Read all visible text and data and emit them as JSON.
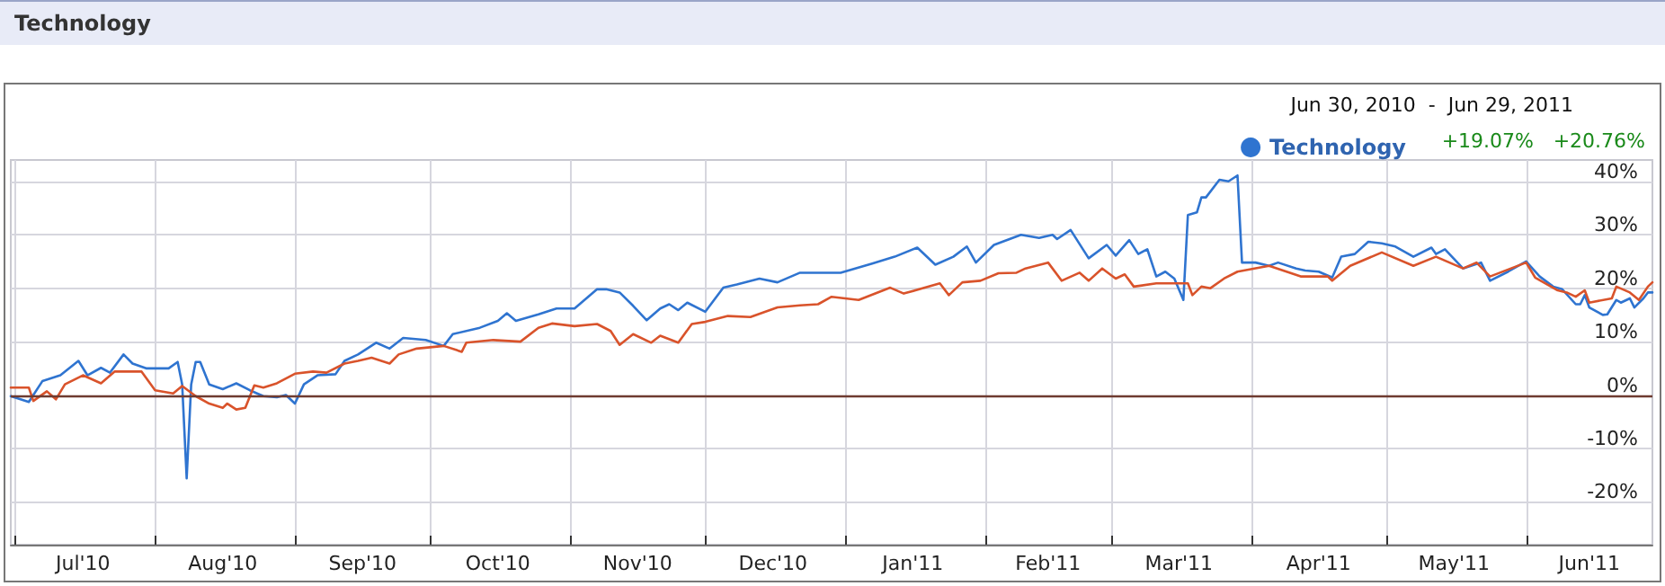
{
  "chart_data": {
    "type": "line",
    "title": "Technology",
    "subtitle": "Jun 30, 2010  -  Jun 29, 2011",
    "annotations": [
      "+19.07%",
      "+20.76%"
    ],
    "xlim": [
      "2010-06-30",
      "2011-06-29"
    ],
    "xticks": [
      {
        "value": "2010-07-01",
        "label": null
      },
      {
        "value": "2010-07-16",
        "label": "Jul'10"
      },
      {
        "value": "2010-08-01",
        "label": null
      },
      {
        "value": "2010-08-16",
        "label": "Aug'10"
      },
      {
        "value": "2010-09-01",
        "label": null
      },
      {
        "value": "2010-09-16",
        "label": "Sep'10"
      },
      {
        "value": "2010-10-01",
        "label": null
      },
      {
        "value": "2010-10-16",
        "label": "Oct'10"
      },
      {
        "value": "2010-11-01",
        "label": null
      },
      {
        "value": "2010-11-16",
        "label": "Nov'10"
      },
      {
        "value": "2010-12-01",
        "label": null
      },
      {
        "value": "2010-12-16",
        "label": "Dec'10"
      },
      {
        "value": "2011-01-01",
        "label": null
      },
      {
        "value": "2011-01-16",
        "label": "Jan'11"
      },
      {
        "value": "2011-02-01",
        "label": null
      },
      {
        "value": "2011-02-15",
        "label": "Feb'11"
      },
      {
        "value": "2011-03-01",
        "label": null
      },
      {
        "value": "2011-03-16",
        "label": "Mar'11"
      },
      {
        "value": "2011-04-01",
        "label": null
      },
      {
        "value": "2011-04-16",
        "label": "Apr'11"
      },
      {
        "value": "2011-05-01",
        "label": null
      },
      {
        "value": "2011-05-16",
        "label": "May'11"
      },
      {
        "value": "2011-06-01",
        "label": null
      },
      {
        "value": "2011-06-15",
        "label": "Jun'11"
      }
    ],
    "ylim": [
      -28,
      44
    ],
    "yticks": [
      {
        "value": -20,
        "label": "-20%"
      },
      {
        "value": -10,
        "label": "-10%"
      },
      {
        "value": 0,
        "label": "0%"
      },
      {
        "value": 10,
        "label": "10%"
      },
      {
        "value": 20,
        "label": "20%"
      },
      {
        "value": 30,
        "label": "30%"
      },
      {
        "value": 40,
        "label": "40%"
      }
    ],
    "grid": true,
    "legend": "top right",
    "marker": "none",
    "line_style": "solid",
    "ref_lines": [
      {
        "axis": "y",
        "value": 0,
        "color": "#6e3b30"
      }
    ],
    "series": [
      {
        "name": "Technology",
        "color": "#2f74d0",
        "x": [
          "2010-06-30",
          "2010-07-04",
          "2010-07-07",
          "2010-07-11",
          "2010-07-15",
          "2010-07-17",
          "2010-07-20",
          "2010-07-22",
          "2010-07-25",
          "2010-07-27",
          "2010-07-30",
          "2010-08-04",
          "2010-08-06",
          "2010-08-07",
          "2010-08-08",
          "2010-08-09",
          "2010-08-10",
          "2010-08-11",
          "2010-08-13",
          "2010-08-16",
          "2010-08-19",
          "2010-08-22",
          "2010-08-25",
          "2010-08-28",
          "2010-08-30",
          "2010-09-01",
          "2010-09-03",
          "2010-09-06",
          "2010-09-10",
          "2010-09-12",
          "2010-09-15",
          "2010-09-19",
          "2010-09-22",
          "2010-09-25",
          "2010-09-30",
          "2010-10-04",
          "2010-10-06",
          "2010-10-12",
          "2010-10-16",
          "2010-10-18",
          "2010-10-20",
          "2010-10-25",
          "2010-10-29",
          "2010-11-02",
          "2010-11-07",
          "2010-11-09",
          "2010-11-12",
          "2010-11-15",
          "2010-11-18",
          "2010-11-21",
          "2010-11-23",
          "2010-11-25",
          "2010-11-27",
          "2010-12-01",
          "2010-12-05",
          "2010-12-08",
          "2010-12-13",
          "2010-12-17",
          "2010-12-22",
          "2010-12-27",
          "2010-12-31",
          "2011-01-07",
          "2011-01-12",
          "2011-01-17",
          "2011-01-21",
          "2011-01-25",
          "2011-01-28",
          "2011-01-30",
          "2011-02-03",
          "2011-02-09",
          "2011-02-13",
          "2011-02-16",
          "2011-02-17",
          "2011-02-20",
          "2011-02-24",
          "2011-02-28",
          "2011-03-02",
          "2011-03-05",
          "2011-03-07",
          "2011-03-09",
          "2011-03-11",
          "2011-03-13",
          "2011-03-15",
          "2011-03-17",
          "2011-03-18",
          "2011-03-20",
          "2011-03-21",
          "2011-03-22",
          "2011-03-25",
          "2011-03-27",
          "2011-03-29",
          "2011-03-30",
          "2011-04-02",
          "2011-04-05",
          "2011-04-07",
          "2011-04-11",
          "2011-04-13",
          "2011-04-16",
          "2011-04-19",
          "2011-04-21",
          "2011-04-24",
          "2011-04-27",
          "2011-04-30",
          "2011-05-03",
          "2011-05-07",
          "2011-05-11",
          "2011-05-12",
          "2011-05-14",
          "2011-05-18",
          "2011-05-22",
          "2011-05-24",
          "2011-05-28",
          "2011-06-01",
          "2011-06-04",
          "2011-06-07",
          "2011-06-09",
          "2011-06-12",
          "2011-06-13",
          "2011-06-14",
          "2011-06-15",
          "2011-06-18",
          "2011-06-19",
          "2011-06-21",
          "2011-06-22",
          "2011-06-24",
          "2011-06-25",
          "2011-06-27",
          "2011-06-28",
          "2011-06-29"
        ],
        "values": [
          -0.2,
          -1.3,
          2.6,
          3.7,
          6.4,
          3.7,
          5.1,
          4.2,
          7.6,
          5.9,
          5.0,
          5.0,
          6.2,
          2.0,
          -15.6,
          2.0,
          6.2,
          6.2,
          2.0,
          1.1,
          2.2,
          0.9,
          -0.2,
          -0.4,
          0,
          -1.6,
          2.0,
          3.7,
          3.9,
          6.4,
          7.6,
          9.8,
          8.7,
          10.7,
          10.3,
          9.2,
          11.4,
          12.6,
          13.9,
          15.3,
          13.9,
          15.1,
          16.2,
          16.2,
          19.8,
          19.8,
          19.2,
          16.7,
          14.0,
          16.2,
          17.0,
          15.9,
          17.3,
          15.6,
          20.1,
          20.7,
          21.8,
          21.1,
          22.9,
          22.9,
          22.9,
          24.6,
          25.9,
          27.6,
          24.4,
          25.9,
          27.8,
          24.8,
          28.1,
          30.0,
          29.4,
          30.0,
          29.2,
          30.9,
          25.6,
          28.1,
          26.1,
          29.0,
          26.4,
          27.3,
          22.2,
          23.1,
          21.8,
          17.8,
          33.7,
          34.2,
          37.0,
          37.0,
          40.3,
          40.0,
          41.1,
          24.8,
          24.8,
          24.2,
          24.8,
          23.7,
          23.3,
          23.1,
          22.0,
          25.9,
          26.4,
          28.7,
          28.4,
          27.8,
          25.9,
          27.6,
          26.4,
          27.3,
          23.7,
          24.8,
          21.4,
          23.1,
          25.0,
          22.2,
          20.3,
          19.8,
          17.0,
          17.0,
          18.7,
          16.4,
          15.0,
          15.1,
          17.8,
          17.3,
          18.1,
          16.4,
          18.1,
          19.2,
          19.2
        ]
      },
      {
        "color": "#d9532b",
        "x": [
          "2010-06-30",
          "2010-07-04",
          "2010-07-05",
          "2010-07-08",
          "2010-07-10",
          "2010-07-12",
          "2010-07-16",
          "2010-07-20",
          "2010-07-23",
          "2010-07-29",
          "2010-08-01",
          "2010-08-05",
          "2010-08-07",
          "2010-08-10",
          "2010-08-13",
          "2010-08-16",
          "2010-08-17",
          "2010-08-19",
          "2010-08-21",
          "2010-08-23",
          "2010-08-25",
          "2010-08-28",
          "2010-09-01",
          "2010-09-05",
          "2010-09-08",
          "2010-09-12",
          "2010-09-15",
          "2010-09-18",
          "2010-09-22",
          "2010-09-24",
          "2010-09-28",
          "2010-10-04",
          "2010-10-08",
          "2010-10-09",
          "2010-10-15",
          "2010-10-21",
          "2010-10-25",
          "2010-10-28",
          "2010-11-02",
          "2010-11-07",
          "2010-11-10",
          "2010-11-12",
          "2010-11-15",
          "2010-11-19",
          "2010-11-21",
          "2010-11-25",
          "2010-11-28",
          "2010-12-01",
          "2010-12-06",
          "2010-12-11",
          "2010-12-17",
          "2010-12-22",
          "2010-12-26",
          "2010-12-29",
          "2011-01-04",
          "2011-01-11",
          "2011-01-14",
          "2011-01-22",
          "2011-01-24",
          "2011-01-27",
          "2011-01-31",
          "2011-02-04",
          "2011-02-08",
          "2011-02-10",
          "2011-02-15",
          "2011-02-18",
          "2011-02-22",
          "2011-02-24",
          "2011-02-27",
          "2011-03-02",
          "2011-03-04",
          "2011-03-06",
          "2011-03-11",
          "2011-03-18",
          "2011-03-19",
          "2011-03-21",
          "2011-03-23",
          "2011-03-26",
          "2011-03-29",
          "2011-04-05",
          "2011-04-12",
          "2011-04-18",
          "2011-04-19",
          "2011-04-23",
          "2011-04-30",
          "2011-05-07",
          "2011-05-12",
          "2011-05-18",
          "2011-05-21",
          "2011-05-24",
          "2011-06-01",
          "2011-06-03",
          "2011-06-08",
          "2011-06-10",
          "2011-06-12",
          "2011-06-14",
          "2011-06-15",
          "2011-06-20",
          "2011-06-21",
          "2011-06-24",
          "2011-06-26",
          "2011-06-28",
          "2011-06-29"
        ],
        "values": [
          1.4,
          1.4,
          -1.1,
          0.7,
          -0.8,
          2.0,
          3.7,
          2.2,
          4.4,
          4.4,
          0.9,
          0.3,
          1.7,
          -0.2,
          -1.6,
          -2.4,
          -1.6,
          -2.7,
          -2.4,
          1.8,
          1.4,
          2.2,
          4.0,
          4.4,
          4.2,
          5.9,
          6.4,
          7.0,
          5.9,
          7.6,
          8.7,
          9.2,
          8.1,
          9.8,
          10.3,
          10.0,
          12.6,
          13.4,
          12.9,
          13.3,
          12.0,
          9.4,
          11.4,
          9.8,
          11.1,
          9.8,
          13.3,
          13.7,
          14.8,
          14.6,
          16.4,
          16.8,
          17.0,
          18.4,
          17.8,
          20.1,
          19.0,
          20.9,
          18.7,
          21.1,
          21.4,
          22.8,
          22.9,
          23.7,
          24.8,
          21.4,
          22.9,
          21.4,
          23.7,
          21.8,
          22.6,
          20.3,
          20.9,
          20.9,
          18.7,
          20.3,
          20.0,
          21.8,
          23.1,
          24.2,
          22.2,
          22.2,
          21.4,
          24.2,
          26.7,
          24.2,
          25.9,
          23.7,
          24.8,
          22.2,
          24.8,
          22.0,
          19.6,
          19.2,
          18.4,
          19.6,
          17.3,
          18.1,
          20.3,
          19.2,
          17.8,
          20.3,
          21.1
        ]
      }
    ]
  }
}
